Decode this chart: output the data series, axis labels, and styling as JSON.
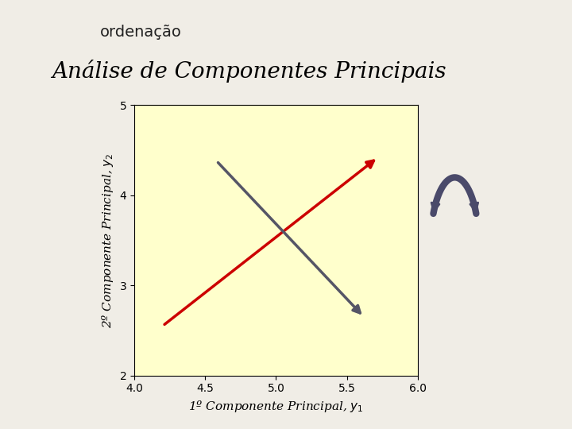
{
  "title": "Análise de Componentes Principais",
  "xlabel": "1º Componente Principal, $y_1$",
  "ylabel": "2º Componente Principal, $y_2$",
  "xlim": [
    4.0,
    6.0
  ],
  "ylim": [
    2.0,
    5.0
  ],
  "xticks": [
    4.0,
    4.5,
    5.0,
    5.5,
    6.0
  ],
  "yticks": [
    2,
    3,
    4,
    5
  ],
  "plot_bg": "#FFFFCC",
  "fig_bg": "#F0EDE6",
  "red_line": {
    "x": [
      4.2,
      5.72
    ],
    "y": [
      2.55,
      4.42
    ],
    "color": "#CC0000",
    "lw": 2.5
  },
  "gray_line": {
    "x": [
      4.58,
      5.62
    ],
    "y": [
      4.38,
      2.65
    ],
    "color": "#555566",
    "lw": 2.5
  },
  "title_fontsize": 20,
  "label_fontsize": 11,
  "tick_fontsize": 10,
  "header_text": "ordenação",
  "header_fontsize": 14,
  "orange_bar_color": "#E87820",
  "arrow_color": "#4A4A6A"
}
